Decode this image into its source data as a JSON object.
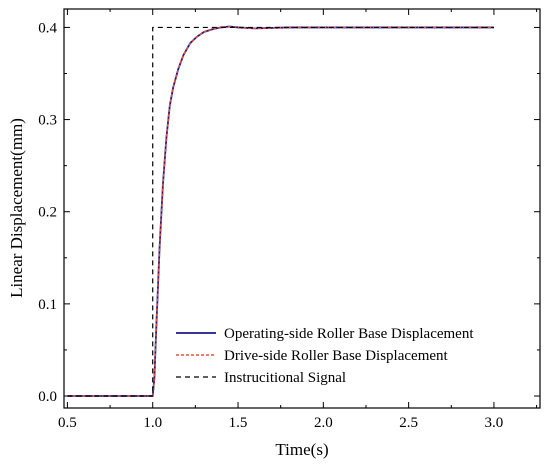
{
  "chart_data": {
    "type": "line",
    "title": "",
    "xlabel": "Time(s)",
    "ylabel": "Linear Displacement(mm)",
    "xlim": [
      0.48,
      3.27
    ],
    "ylim": [
      -0.013,
      0.42
    ],
    "xticks": [
      0.5,
      1.0,
      1.5,
      2.0,
      2.5,
      3.0
    ],
    "xtick_labels": [
      "0.5",
      "1.0",
      "1.5",
      "2.0",
      "2.5",
      "3.0"
    ],
    "yticks": [
      0.0,
      0.1,
      0.2,
      0.3,
      0.4
    ],
    "ytick_labels": [
      "0.0",
      "0.1",
      "0.2",
      "0.3",
      "0.4"
    ],
    "grid": false,
    "legend_position": "bottom-right",
    "series": [
      {
        "name": "Operating-side Roller Base Displacement",
        "color": "#1a1a8c",
        "style": "solid",
        "x": [
          0.5,
          1.0,
          1.01,
          1.02,
          1.04,
          1.06,
          1.08,
          1.1,
          1.12,
          1.15,
          1.18,
          1.22,
          1.26,
          1.3,
          1.35,
          1.4,
          1.45,
          1.5,
          1.6,
          1.8,
          2.0,
          2.5,
          3.0
        ],
        "y": [
          0.0,
          0.0,
          0.02,
          0.07,
          0.16,
          0.23,
          0.28,
          0.315,
          0.335,
          0.355,
          0.37,
          0.383,
          0.39,
          0.395,
          0.398,
          0.4,
          0.401,
          0.4,
          0.399,
          0.4,
          0.4,
          0.4,
          0.4
        ]
      },
      {
        "name": "Drive-side Roller Base Displacement",
        "color": "#e8503a",
        "style": "dashed",
        "x": [
          0.5,
          1.0,
          1.01,
          1.02,
          1.04,
          1.06,
          1.08,
          1.1,
          1.12,
          1.15,
          1.18,
          1.22,
          1.26,
          1.3,
          1.35,
          1.4,
          1.45,
          1.5,
          1.6,
          1.8,
          2.0,
          2.5,
          3.0
        ],
        "y": [
          0.0,
          0.0,
          0.02,
          0.07,
          0.16,
          0.23,
          0.28,
          0.315,
          0.335,
          0.355,
          0.37,
          0.383,
          0.39,
          0.395,
          0.398,
          0.4,
          0.401,
          0.4,
          0.399,
          0.4,
          0.4,
          0.4,
          0.4
        ]
      },
      {
        "name": "Instrucitional Signal",
        "color": "#000000",
        "style": "dashed",
        "x": [
          0.5,
          1.0,
          1.0,
          3.0
        ],
        "y": [
          0.0,
          0.0,
          0.4,
          0.4
        ]
      }
    ]
  }
}
